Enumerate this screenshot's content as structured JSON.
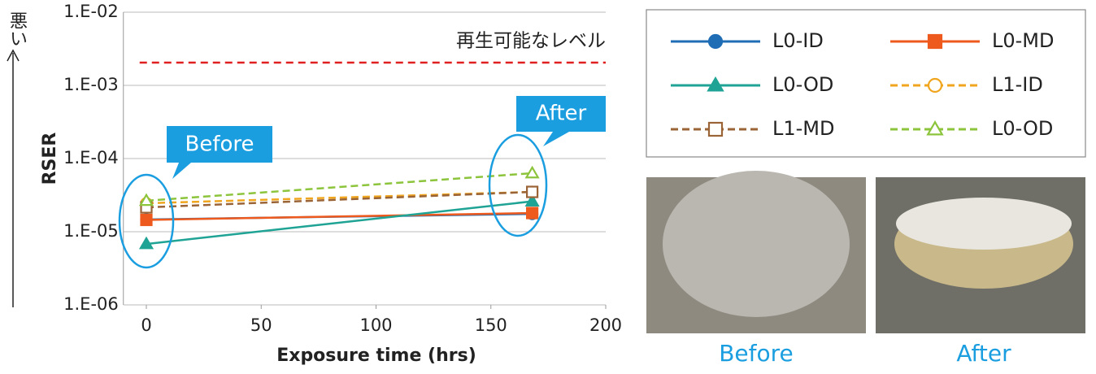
{
  "chart_data": {
    "type": "line",
    "y_annotation": "悪い",
    "ylabel": "RSER",
    "xlabel": "Exposure time (hrs)",
    "xlim": [
      -10,
      200
    ],
    "xticks": [
      0,
      50,
      100,
      150,
      200
    ],
    "ylim": [
      1e-06,
      0.01
    ],
    "log_y": true,
    "grid": true,
    "yticks": [
      {
        "value": 0.01,
        "label": "1.E-02"
      },
      {
        "value": 0.001,
        "label": "1.E-03"
      },
      {
        "value": 0.0001,
        "label": "1.E-04"
      },
      {
        "value": 1e-05,
        "label": "1.E-05"
      },
      {
        "value": 1e-06,
        "label": "1.E-06"
      }
    ],
    "reference_line": {
      "value": 0.00205,
      "label": "再生可能なレベル",
      "color": "#e02020"
    },
    "x": [
      0,
      168
    ],
    "series": [
      {
        "name": "L0-ID",
        "color": "#1f6db5",
        "marker": "circle",
        "filled": true,
        "dashed": false,
        "values": [
          1.47e-05,
          1.75e-05
        ]
      },
      {
        "name": "L0-MD",
        "color": "#ee5a1e",
        "marker": "square",
        "filled": true,
        "dashed": false,
        "values": [
          1.45e-05,
          1.8e-05
        ]
      },
      {
        "name": "L0-OD",
        "color": "#1fa394",
        "marker": "triangle",
        "filled": true,
        "dashed": false,
        "values": [
          6.8e-06,
          2.6e-05
        ]
      },
      {
        "name": "L1-ID",
        "color": "#f0a51e",
        "marker": "circle",
        "filled": false,
        "dashed": true,
        "values": [
          2.45e-05,
          3.5e-05
        ]
      },
      {
        "name": "L1-MD",
        "color": "#9a6436",
        "marker": "square",
        "filled": false,
        "dashed": true,
        "values": [
          2.15e-05,
          3.5e-05
        ]
      },
      {
        "name": "L0-OD",
        "color": "#8cc43c",
        "marker": "triangle",
        "filled": false,
        "dashed": true,
        "values": [
          2.65e-05,
          6.3e-05
        ]
      }
    ],
    "callouts": [
      "Before",
      "After"
    ],
    "photo_captions": [
      "Before",
      "After"
    ]
  }
}
